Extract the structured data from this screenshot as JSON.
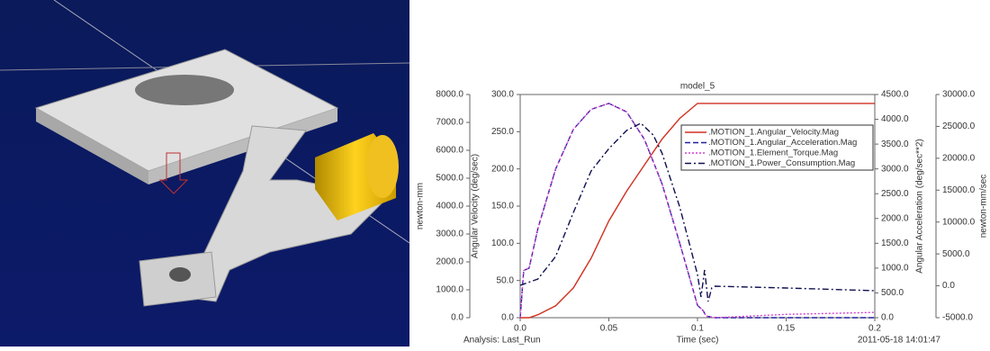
{
  "chart_data": {
    "type": "line",
    "title": "model_5",
    "x_label": "Time (sec)",
    "footer_left": "Analysis:  Last_Run",
    "footer_right": "2011-05-18 14:01:47",
    "xlim": [
      0,
      0.2
    ],
    "xticks": [
      {
        "value": 0,
        "label": "0.0"
      },
      0.05,
      0.1,
      0.15,
      0.2
    ],
    "y_axes": [
      {
        "label": "newton-mm",
        "side": "left",
        "lim": [
          0,
          8000
        ],
        "ticks": [
          {
            "value": 0,
            "label": "0.0"
          },
          {
            "value": 1000,
            "label": "1000.0"
          },
          {
            "value": 2000,
            "label": "2000.0"
          },
          {
            "value": 3000,
            "label": "3000.0"
          },
          {
            "value": 4000,
            "label": "4000.0"
          },
          {
            "value": 5000,
            "label": "5000.0"
          },
          {
            "value": 6000,
            "label": "6000.0"
          },
          {
            "value": 7000,
            "label": "7000.0"
          },
          {
            "value": 8000,
            "label": "8000.0"
          }
        ]
      },
      {
        "label": "Angular Velocity (deg/sec)",
        "side": "left",
        "lim": [
          0,
          300
        ],
        "ticks": [
          {
            "value": 0,
            "label": "0.0"
          },
          {
            "value": 50,
            "label": "50.0"
          },
          {
            "value": 100,
            "label": "100.0"
          },
          {
            "value": 150,
            "label": "150.0"
          },
          {
            "value": 200,
            "label": "200.0"
          },
          {
            "value": 250,
            "label": "250.0"
          },
          {
            "value": 300,
            "label": "300.0"
          }
        ]
      },
      {
        "label": "Angular Acceleration (deg/sec**2)",
        "side": "right",
        "lim": [
          0,
          4500
        ],
        "ticks": [
          {
            "value": 0,
            "label": "0.0"
          },
          {
            "value": 500,
            "label": "500.0"
          },
          {
            "value": 1000,
            "label": "1000.0"
          },
          {
            "value": 1500,
            "label": "1500.0"
          },
          {
            "value": 2000,
            "label": "2000.0"
          },
          {
            "value": 2500,
            "label": "2500.0"
          },
          {
            "value": 3000,
            "label": "3000.0"
          },
          {
            "value": 3500,
            "label": "3500.0"
          },
          {
            "value": 4000,
            "label": "4000.0"
          },
          {
            "value": 4500,
            "label": "4500.0"
          }
        ]
      },
      {
        "label": "newton-mm/sec",
        "side": "right",
        "lim": [
          -5000,
          30000
        ],
        "ticks": [
          {
            "value": -5000,
            "label": "-5000.0"
          },
          {
            "value": 0,
            "label": "0.0"
          },
          {
            "value": 5000,
            "label": "5000.0"
          },
          {
            "value": 10000,
            "label": "10000.0"
          },
          {
            "value": 15000,
            "label": "15000.0"
          },
          {
            "value": 20000,
            "label": "20000.0"
          },
          {
            "value": 25000,
            "label": "25000.0"
          },
          {
            "value": 30000,
            "label": "30000.0"
          }
        ]
      }
    ],
    "series": [
      {
        "name": ".MOTION_1.Angular_Velocity.Mag",
        "color": "#d03020",
        "dash": "solid",
        "axis": 1,
        "x": [
          0,
          0.005,
          0.01,
          0.02,
          0.03,
          0.04,
          0.05,
          0.06,
          0.07,
          0.08,
          0.09,
          0.1,
          0.15,
          0.2
        ],
        "values": [
          0,
          0,
          4,
          16,
          40,
          80,
          130,
          170,
          205,
          240,
          268,
          288,
          288,
          288
        ]
      },
      {
        "name": ".MOTION_1.Angular_Acceleration.Mag",
        "color": "#2020a0",
        "dash": "dashed",
        "axis": 2,
        "x": [
          0,
          0.002,
          0.005,
          0.01,
          0.02,
          0.03,
          0.04,
          0.05,
          0.06,
          0.07,
          0.08,
          0.09,
          0.1,
          0.103,
          0.105,
          0.11,
          0.15,
          0.2
        ],
        "values": [
          0,
          950,
          1000,
          1800,
          3000,
          3800,
          4200,
          4320,
          4150,
          3600,
          2700,
          1500,
          250,
          150,
          30,
          0,
          0,
          0
        ]
      },
      {
        "name": ".MOTION_1.Element_Torque.Mag",
        "color": "#d040d0",
        "dash": "dotted",
        "axis": 0,
        "x": [
          0,
          0.002,
          0.005,
          0.01,
          0.02,
          0.03,
          0.04,
          0.05,
          0.06,
          0.07,
          0.08,
          0.09,
          0.1,
          0.103,
          0.105,
          0.11,
          0.15,
          0.2
        ],
        "values": [
          0,
          1690,
          1780,
          3200,
          5330,
          6750,
          7470,
          7680,
          7380,
          6400,
          4800,
          2670,
          440,
          270,
          50,
          0,
          120,
          190
        ]
      },
      {
        "name": ".MOTION_1.Power_Consumption.Mag",
        "color": "#101050",
        "dash": "dashdot",
        "axis": 3,
        "x": [
          0,
          0.01,
          0.02,
          0.03,
          0.04,
          0.05,
          0.06,
          0.068,
          0.075,
          0.08,
          0.09,
          0.1,
          0.102,
          0.104,
          0.106,
          0.108,
          0.11,
          0.15,
          0.2
        ],
        "values": [
          80,
          1070,
          4600,
          11500,
          18000,
          21500,
          24350,
          25500,
          23650,
          20800,
          12350,
          1770,
          -1750,
          2480,
          -2460,
          -340,
          -60,
          -340,
          -770
        ]
      }
    ]
  }
}
